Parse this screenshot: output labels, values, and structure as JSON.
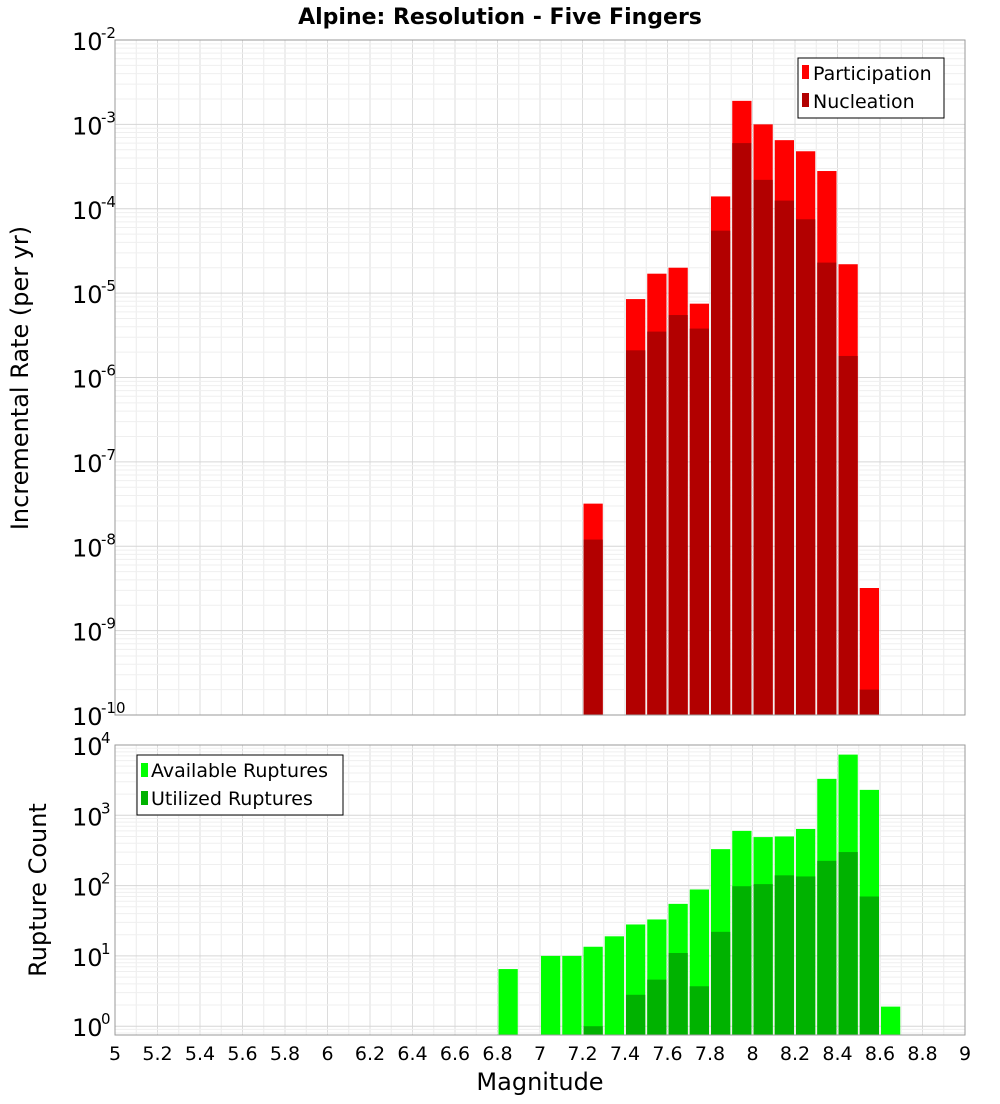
{
  "chart_data": [
    {
      "type": "bar",
      "title": "Alpine: Resolution - Five Fingers",
      "xlabel": "",
      "ylabel": "Incremental Rate (per yr)",
      "xlim": [
        5,
        9
      ],
      "ylim": [
        1e-10,
        0.01
      ],
      "yscale": "log",
      "grid": true,
      "legend_position": "top-right",
      "bin_width": 0.1,
      "x": [
        7.25,
        7.45,
        7.55,
        7.65,
        7.75,
        7.85,
        7.95,
        8.05,
        8.15,
        8.25,
        8.35,
        8.45,
        8.55
      ],
      "series": [
        {
          "name": "Participation",
          "color": "#ff0000",
          "values": [
            3.2e-08,
            8.5e-06,
            1.7e-05,
            2e-05,
            7.5e-06,
            0.00014,
            0.0019,
            0.001,
            0.00065,
            0.00048,
            0.00028,
            2.2e-05,
            3.2e-09
          ]
        },
        {
          "name": "Nucleation",
          "color": "#b20000",
          "values": [
            1.2e-08,
            2.1e-06,
            3.5e-06,
            5.5e-06,
            3.8e-06,
            5.5e-05,
            0.0006,
            0.00022,
            0.000125,
            7.5e-05,
            2.3e-05,
            1.8e-06,
            2e-10
          ]
        }
      ],
      "y_ticks": [
        {
          "base": "10",
          "exp": "-10"
        },
        {
          "base": "10",
          "exp": "-9"
        },
        {
          "base": "10",
          "exp": "-8"
        },
        {
          "base": "10",
          "exp": "-7"
        },
        {
          "base": "10",
          "exp": "-6"
        },
        {
          "base": "10",
          "exp": "-5"
        },
        {
          "base": "10",
          "exp": "-4"
        },
        {
          "base": "10",
          "exp": "-3"
        },
        {
          "base": "10",
          "exp": "-2"
        }
      ]
    },
    {
      "type": "bar",
      "title": "",
      "xlabel": "Magnitude",
      "ylabel": "Rupture Count",
      "xlim": [
        5,
        9
      ],
      "ylim": [
        0.75,
        10000
      ],
      "yscale": "log",
      "grid": true,
      "legend_position": "top-left",
      "bin_width": 0.1,
      "x": [
        6.85,
        7.05,
        7.15,
        7.25,
        7.35,
        7.45,
        7.55,
        7.65,
        7.75,
        7.85,
        7.95,
        8.05,
        8.15,
        8.25,
        8.35,
        8.45,
        8.55,
        8.65
      ],
      "series": [
        {
          "name": "Available Ruptures",
          "color": "#00ff00",
          "values": [
            6.5,
            10,
            10,
            13.5,
            19,
            28,
            33,
            55,
            88,
            330,
            600,
            490,
            500,
            640,
            3300,
            7300,
            2300,
            1.9
          ]
        },
        {
          "name": "Utilized Ruptures",
          "color": "#00b200",
          "values": [
            0,
            0,
            0,
            1,
            0,
            2.8,
            4.6,
            11,
            3.7,
            22,
            98,
            105,
            140,
            135,
            225,
            300,
            70,
            0
          ]
        }
      ],
      "y_ticks": [
        {
          "base": "10",
          "exp": "0"
        },
        {
          "base": "10",
          "exp": "1"
        },
        {
          "base": "10",
          "exp": "2"
        },
        {
          "base": "10",
          "exp": "3"
        },
        {
          "base": "10",
          "exp": "4"
        }
      ],
      "x_tick_labels": [
        "5",
        "5.2",
        "5.4",
        "5.6",
        "5.8",
        "6",
        "6.2",
        "6.4",
        "6.6",
        "6.8",
        "7",
        "7.2",
        "7.4",
        "7.6",
        "7.8",
        "8",
        "8.2",
        "8.4",
        "8.6",
        "8.8",
        "9"
      ]
    }
  ]
}
